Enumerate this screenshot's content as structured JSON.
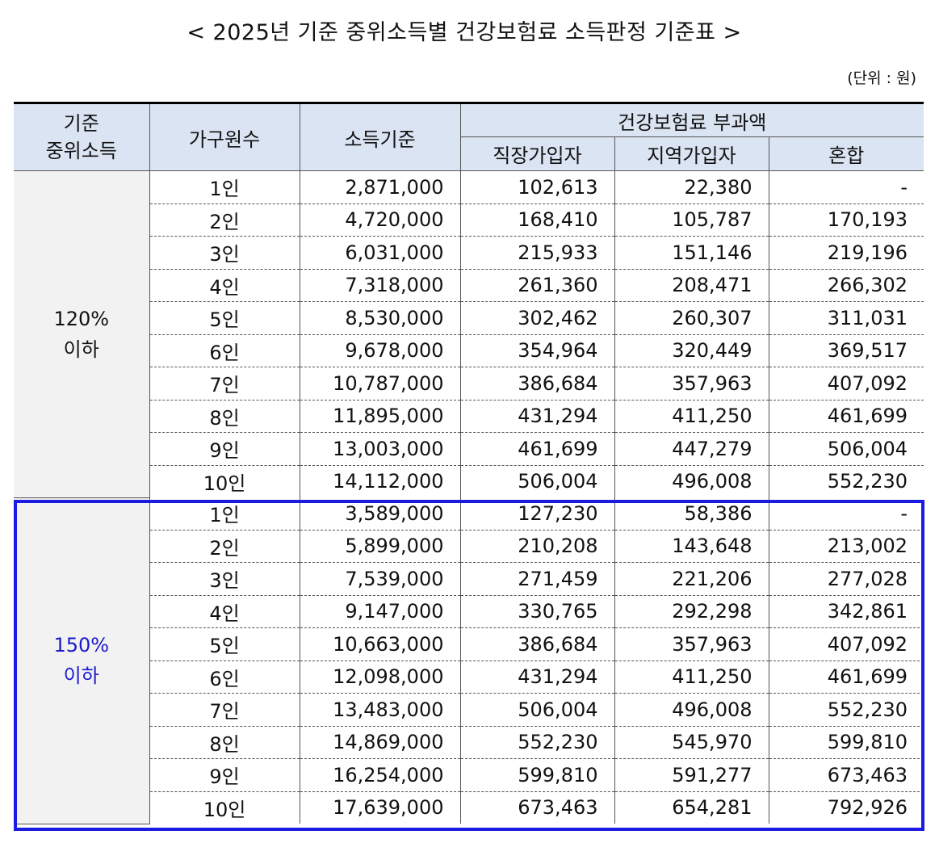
{
  "title": "< 2025년 기준 중위소득별 건강보험료 소득판정 기준표 >",
  "unit": "(단위 : 원)",
  "headers": {
    "group": "기준\n중위소득",
    "household": "가구원수",
    "income": "소득기준",
    "premium": "건강보험료 부과액",
    "employee": "직장가입자",
    "regional": "지역가입자",
    "mixed": "혼합"
  },
  "groups": [
    {
      "label": "120%\n이하",
      "color": "#111111",
      "rows": [
        [
          "1인",
          "2,871,000",
          "102,613",
          "22,380",
          "-"
        ],
        [
          "2인",
          "4,720,000",
          "168,410",
          "105,787",
          "170,193"
        ],
        [
          "3인",
          "6,031,000",
          "215,933",
          "151,146",
          "219,196"
        ],
        [
          "4인",
          "7,318,000",
          "261,360",
          "208,471",
          "266,302"
        ],
        [
          "5인",
          "8,530,000",
          "302,462",
          "260,307",
          "311,031"
        ],
        [
          "6인",
          "9,678,000",
          "354,964",
          "320,449",
          "369,517"
        ],
        [
          "7인",
          "10,787,000",
          "386,684",
          "357,963",
          "407,092"
        ],
        [
          "8인",
          "11,895,000",
          "431,294",
          "411,250",
          "461,699"
        ],
        [
          "9인",
          "13,003,000",
          "461,699",
          "447,279",
          "506,004"
        ],
        [
          "10인",
          "14,112,000",
          "506,004",
          "496,008",
          "552,230"
        ]
      ]
    },
    {
      "label": "150%\n이하",
      "color": "#1a1acc",
      "rows": [
        [
          "1인",
          "3,589,000",
          "127,230",
          "58,386",
          "-"
        ],
        [
          "2인",
          "5,899,000",
          "210,208",
          "143,648",
          "213,002"
        ],
        [
          "3인",
          "7,539,000",
          "271,459",
          "221,206",
          "277,028"
        ],
        [
          "4인",
          "9,147,000",
          "330,765",
          "292,298",
          "342,861"
        ],
        [
          "5인",
          "10,663,000",
          "386,684",
          "357,963",
          "407,092"
        ],
        [
          "6인",
          "12,098,000",
          "431,294",
          "411,250",
          "461,699"
        ],
        [
          "7인",
          "13,483,000",
          "506,004",
          "496,008",
          "552,230"
        ],
        [
          "8인",
          "14,869,000",
          "552,230",
          "545,970",
          "599,810"
        ],
        [
          "9인",
          "16,254,000",
          "599,810",
          "591,277",
          "673,463"
        ],
        [
          "10인",
          "17,639,000",
          "673,463",
          "654,281",
          "792,926"
        ]
      ]
    }
  ]
}
